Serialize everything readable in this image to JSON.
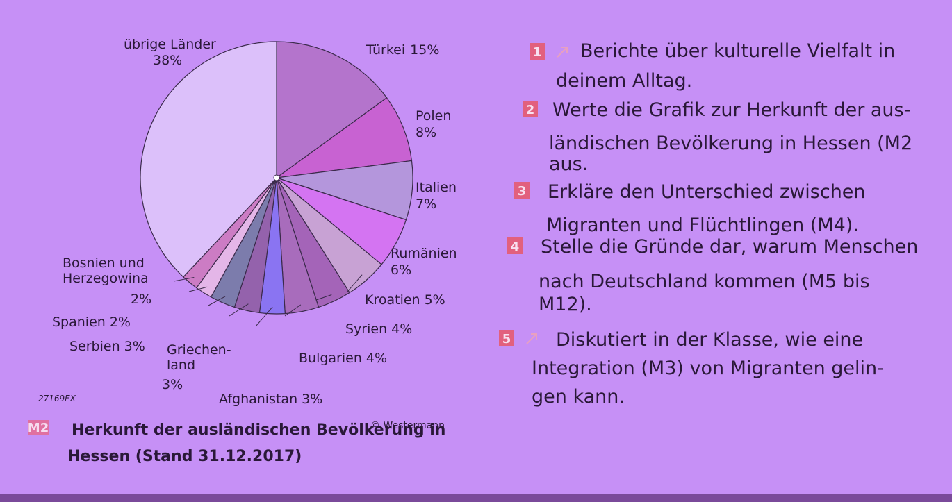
{
  "chart_data": {
    "type": "pie",
    "categories": [
      "Türkei",
      "Polen",
      "Italien",
      "Rumänien",
      "Kroatien",
      "Syrien",
      "Bulgarien",
      "Afghanistan",
      "Griechen-\nland",
      "Serbien",
      "Spanien",
      "Bosnien und\nHerzegowina",
      "übrige Länder"
    ],
    "values": [
      15,
      8,
      7,
      6,
      5,
      4,
      4,
      3,
      3,
      3,
      2,
      2,
      38
    ],
    "value_labels": [
      "15%",
      "8%",
      "7%",
      "6%",
      "5%",
      "4%",
      "4%",
      "3%",
      "3%",
      "3%",
      "2%",
      "2%",
      "38%"
    ],
    "colors": [
      "#b474cc",
      "#c862d2",
      "#b496dc",
      "#d474f2",
      "#c8a2d4",
      "#a464b8",
      "#a86cbc",
      "#8a74f2",
      "#9462ac",
      "#7c7cac",
      "#e4b6e8",
      "#cc7cc4",
      "#dcc0fa"
    ]
  },
  "code": "27169EX",
  "copyright": "© Westermann",
  "caption": {
    "label": "M2",
    "lines": [
      "Herkunft der ausländischen Bevölkerung in",
      "Hessen (Stand 31.12.2017)"
    ]
  },
  "tasks": [
    {
      "number": "1",
      "lines": [
        "Berichte über kulturelle Vielfalt in",
        "deinem Alltag."
      ]
    },
    {
      "number": "2",
      "lines": [
        "Werte die Grafik zur Herkunft der aus-",
        "ländischen Bevölkerung in Hessen (M2",
        "aus."
      ]
    },
    {
      "number": "3",
      "lines": [
        "Erkläre den Unterschied zwischen",
        "Migranten und Flüchtlingen (M4)."
      ]
    },
    {
      "number": "4",
      "lines": [
        "Stelle die Gründe dar, warum Menschen",
        "nach Deutschland kommen (M5 bis",
        "M12)."
      ]
    },
    {
      "number": "5",
      "lines": [
        "Diskutiert in der Klasse, wie eine",
        "Integration (M3) von Migranten gelin-",
        "gen kann."
      ]
    }
  ]
}
